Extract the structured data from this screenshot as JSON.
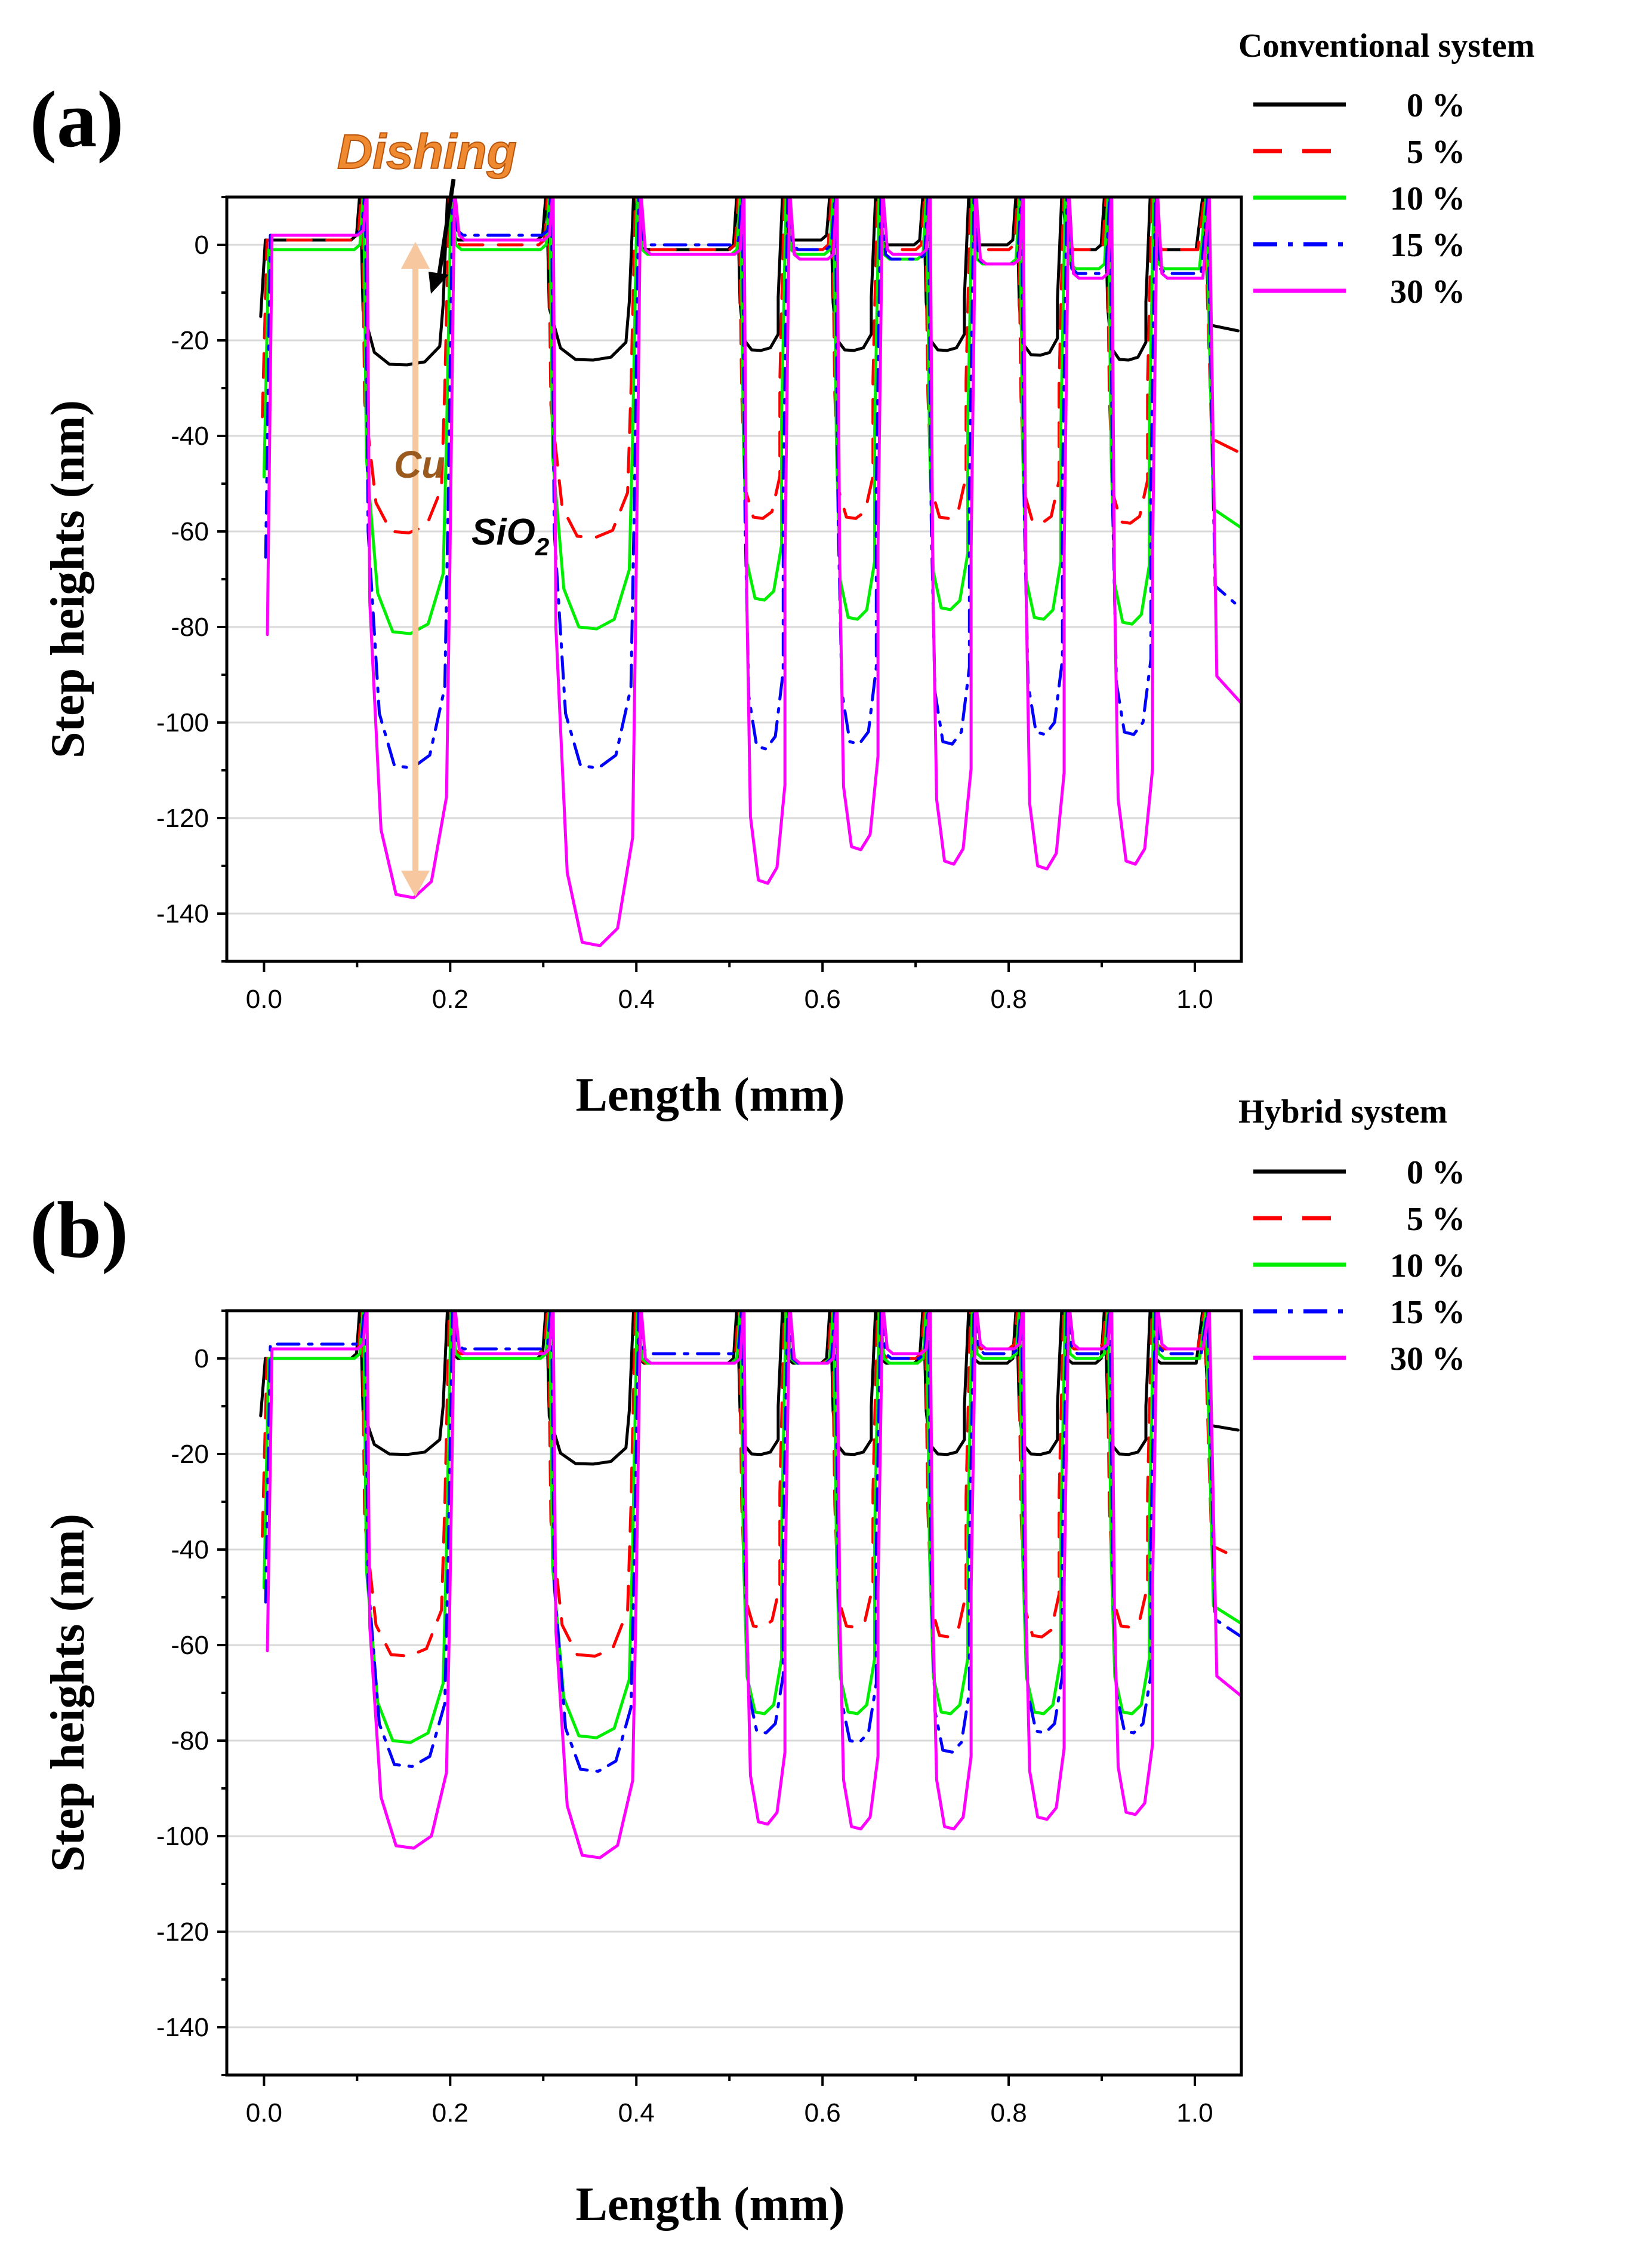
{
  "chart_data": [
    {
      "type": "line",
      "panel_label": "(a)",
      "legend_title": "Conventional system",
      "xlabel": "Length (mm)",
      "ylabel": "Step heights (nm)",
      "xlim": [
        -0.04,
        1.05
      ],
      "ylim": [
        -150,
        10
      ],
      "xticks": [
        0.0,
        0.2,
        0.4,
        0.6,
        0.8,
        1.0
      ],
      "xtick_labels": [
        "0.0",
        "0.2",
        "0.4",
        "0.6",
        "0.8",
        "1.0"
      ],
      "yticks": [
        0,
        -20,
        -40,
        -60,
        -80,
        -100,
        -120,
        -140
      ],
      "ytick_labels": [
        "0",
        "-20",
        "-40",
        "-60",
        "-80",
        "-100",
        "-120",
        "-140"
      ],
      "grid": true,
      "legend_position": "top-right, outside",
      "trenches": [
        [
          0.105,
          0.2
        ],
        [
          0.305,
          0.4
        ],
        [
          0.51,
          0.56
        ],
        [
          0.61,
          0.66
        ],
        [
          0.71,
          0.76
        ],
        [
          0.81,
          0.86
        ],
        [
          0.905,
          0.955
        ]
      ],
      "series": [
        {
          "name": "0 %",
          "color": "#000000",
          "dash": "solid",
          "plateau": [
            1,
            1,
            -1,
            1,
            0,
            0,
            -1
          ],
          "depths": [
            -25,
            -24,
            -22,
            -22,
            -22,
            -23,
            -24
          ]
        },
        {
          "name": "5 %",
          "color": "#ff0000",
          "dash": "dashed",
          "plateau": [
            1,
            0,
            -1,
            -1,
            -1,
            -1,
            -1
          ],
          "depths": [
            -60,
            -61,
            -57,
            -57,
            -57,
            -58,
            -58
          ]
        },
        {
          "name": "10 %",
          "color": "#00ee00",
          "dash": "solid",
          "plateau": [
            -1,
            -1,
            -2,
            -2,
            -3,
            -4,
            -5
          ],
          "depths": [
            -81,
            -80,
            -74,
            -78,
            -76,
            -78,
            -79
          ]
        },
        {
          "name": "15 %",
          "color": "#0000ff",
          "dash": "dashdot",
          "plateau": [
            2,
            2,
            0,
            -1,
            -3,
            -4,
            -6
          ],
          "depths": [
            -109,
            -109,
            -105,
            -104,
            -104,
            -102,
            -102
          ]
        },
        {
          "name": "30 %",
          "color": "#ff00ff",
          "dash": "solid",
          "plateau": [
            2,
            1,
            -2,
            -3,
            -2,
            -4,
            -7
          ],
          "depths": [
            -136,
            -146,
            -133,
            -126,
            -129,
            -130,
            -129
          ]
        }
      ],
      "annotations": {
        "dishing": "Dishing",
        "cu": "Cu",
        "sio2": "SiO",
        "sio2_sub": "2"
      }
    },
    {
      "type": "line",
      "panel_label": "(b)",
      "legend_title": "Hybrid system",
      "xlabel": "Length (mm)",
      "ylabel": "Step heights (nm)",
      "xlim": [
        -0.04,
        1.05
      ],
      "ylim": [
        -150,
        10
      ],
      "xticks": [
        0.0,
        0.2,
        0.4,
        0.6,
        0.8,
        1.0
      ],
      "xtick_labels": [
        "0.0",
        "0.2",
        "0.4",
        "0.6",
        "0.8",
        "1.0"
      ],
      "yticks": [
        0,
        -20,
        -40,
        -60,
        -80,
        -100,
        -120,
        -140
      ],
      "ytick_labels": [
        "0",
        "-20",
        "-40",
        "-60",
        "-80",
        "-100",
        "-120",
        "-140"
      ],
      "grid": true,
      "legend_position": "top-right, outside",
      "trenches": [
        [
          0.105,
          0.2
        ],
        [
          0.305,
          0.4
        ],
        [
          0.51,
          0.56
        ],
        [
          0.61,
          0.66
        ],
        [
          0.71,
          0.76
        ],
        [
          0.81,
          0.86
        ],
        [
          0.905,
          0.955
        ]
      ],
      "series": [
        {
          "name": "0 %",
          "color": "#000000",
          "dash": "solid",
          "plateau": [
            0,
            0,
            -1,
            -1,
            -1,
            -1,
            -1
          ],
          "depths": [
            -20,
            -22,
            -20,
            -20,
            -20,
            -20,
            -20
          ]
        },
        {
          "name": "5 %",
          "color": "#ff0000",
          "dash": "dashed",
          "plateau": [
            0,
            1,
            -1,
            -1,
            0,
            2,
            2
          ],
          "depths": [
            -62,
            -62,
            -56,
            -56,
            -58,
            -58,
            -56
          ]
        },
        {
          "name": "10 %",
          "color": "#00ee00",
          "dash": "solid",
          "plateau": [
            0,
            0,
            -1,
            -1,
            -1,
            0,
            0
          ],
          "depths": [
            -80,
            -79,
            -74,
            -74,
            -74,
            -74,
            -74
          ]
        },
        {
          "name": "15 %",
          "color": "#0000ff",
          "dash": "dashdot",
          "plateau": [
            3,
            2,
            1,
            -1,
            0,
            1,
            1
          ],
          "depths": [
            -85,
            -86,
            -78,
            -80,
            -82,
            -78,
            -78
          ]
        },
        {
          "name": "30 %",
          "color": "#ff00ff",
          "dash": "solid",
          "plateau": [
            2,
            1,
            -1,
            -1,
            1,
            2,
            2
          ],
          "depths": [
            -102,
            -104,
            -97,
            -98,
            -98,
            -96,
            -95
          ]
        }
      ],
      "annotations": {}
    }
  ]
}
